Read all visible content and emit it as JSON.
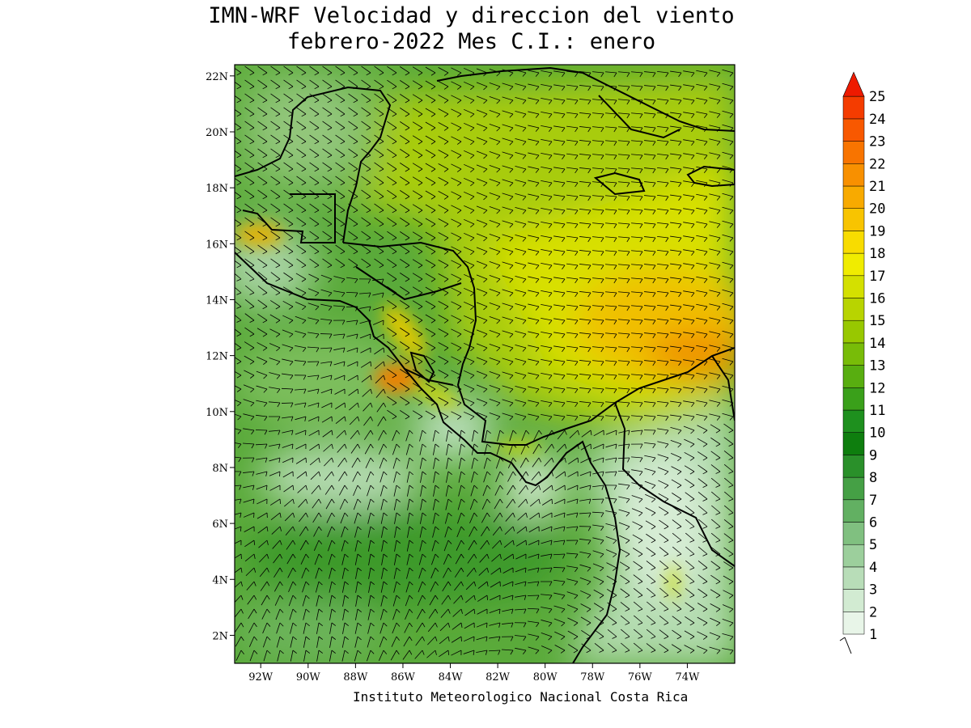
{
  "title": {
    "line1": "IMN-WRF Velocidad y direccion del viento",
    "line2": "febrero-2022 Mes C.I.: enero"
  },
  "credit": "Instituto Meteorologico Nacional Costa Rica",
  "map": {
    "lat_labels": [
      "22N",
      "20N",
      "18N",
      "16N",
      "14N",
      "12N",
      "10N",
      "8N",
      "6N",
      "4N",
      "2N"
    ],
    "lon_labels": [
      "92W",
      "90W",
      "88W",
      "86W",
      "84W",
      "82W",
      "80W",
      "78W",
      "76W",
      "74W"
    ],
    "lat_values": [
      22,
      20,
      18,
      16,
      14,
      12,
      10,
      8,
      6,
      4,
      2
    ],
    "lon_values": [
      -92,
      -90,
      -88,
      -86,
      -84,
      -82,
      -80,
      -78,
      -76,
      -74
    ],
    "extent": {
      "lon_min": -93.1,
      "lon_max": -72.0,
      "lat_min": 1.0,
      "lat_max": 22.4
    }
  },
  "colorbar": {
    "labels": [
      "1",
      "2",
      "3",
      "4",
      "5",
      "6",
      "7",
      "8",
      "9",
      "10",
      "11",
      "12",
      "13",
      "14",
      "15",
      "16",
      "17",
      "18",
      "19",
      "20",
      "21",
      "22",
      "23",
      "24",
      "25"
    ],
    "colors": [
      "#e8f5e8",
      "#d2ebd2",
      "#b8ddb8",
      "#9ccf9c",
      "#80c080",
      "#62b062",
      "#45a045",
      "#2a902a",
      "#0e7e0e",
      "#1e901e",
      "#3aa01a",
      "#58ae10",
      "#78bc08",
      "#98c800",
      "#b8d400",
      "#d4e000",
      "#f0ec00",
      "#f8dc00",
      "#f8c400",
      "#f8aa00",
      "#f89000",
      "#f87400",
      "#f85800",
      "#f43c00",
      "#ee1a00"
    ]
  }
}
